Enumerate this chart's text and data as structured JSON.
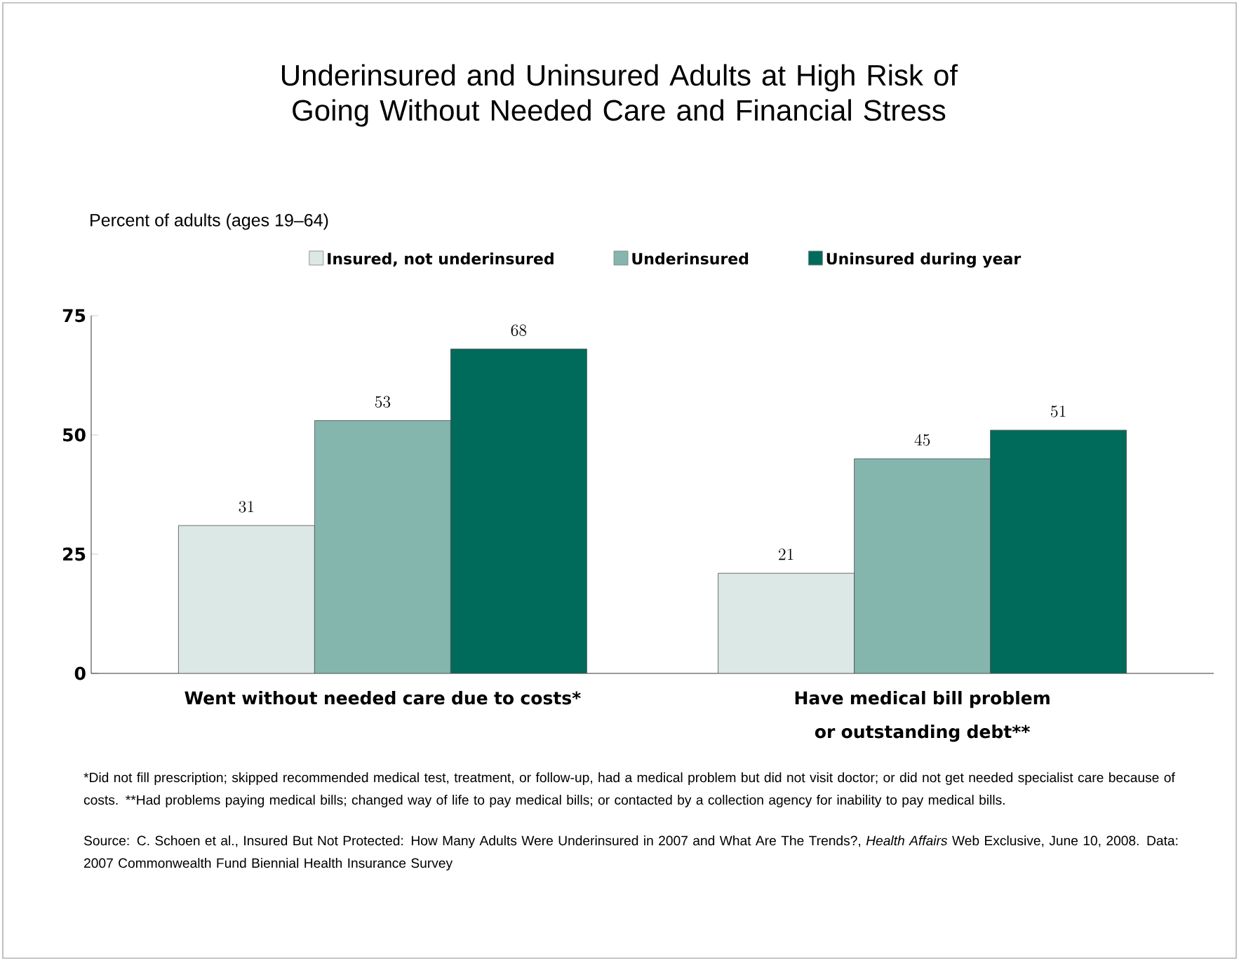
{
  "chart_data": {
    "type": "bar",
    "title": "Underinsured and Uninsured Adults at High Risk of Going Without Needed Care and Financial Stress",
    "ylabel": "Percent of adults (ages 19–64)",
    "categories": [
      "Went without needed care due to costs*",
      "Have medical bill problem or outstanding debt**"
    ],
    "series": [
      {
        "name": "Insured, not underinsured",
        "color": "#dce8e6",
        "values": [
          31,
          21
        ]
      },
      {
        "name": "Underinsured",
        "color": "#84b6ae",
        "values": [
          53,
          45
        ]
      },
      {
        "name": "Uninsured during year",
        "color": "#006b5b",
        "values": [
          68,
          51
        ]
      }
    ],
    "ylim": [
      0,
      75
    ],
    "yticks": [
      0,
      25,
      50,
      75
    ],
    "data_labels": true,
    "legend": "top",
    "annotations": [
      "*Did not fill prescription; skipped recommended medical test, treatment, or follow-up, had a medical problem but did not visit doctor; or did not get needed specialist care because of costs. **Had problems paying medical bills; changed way of life to pay medical bills; or contacted by a collection agency for inability to pay medical bills.",
      "Source: C. Schoen et al., Insured But Not Protected: How Many Adults Were Underinsured in 2007 and What Are The Trends?, *Health Affairs* Web Exclusive, June 10, 2008. Data:  2007 Commonwealth Fund Biennial Health Insurance Survey"
    ]
  }
}
